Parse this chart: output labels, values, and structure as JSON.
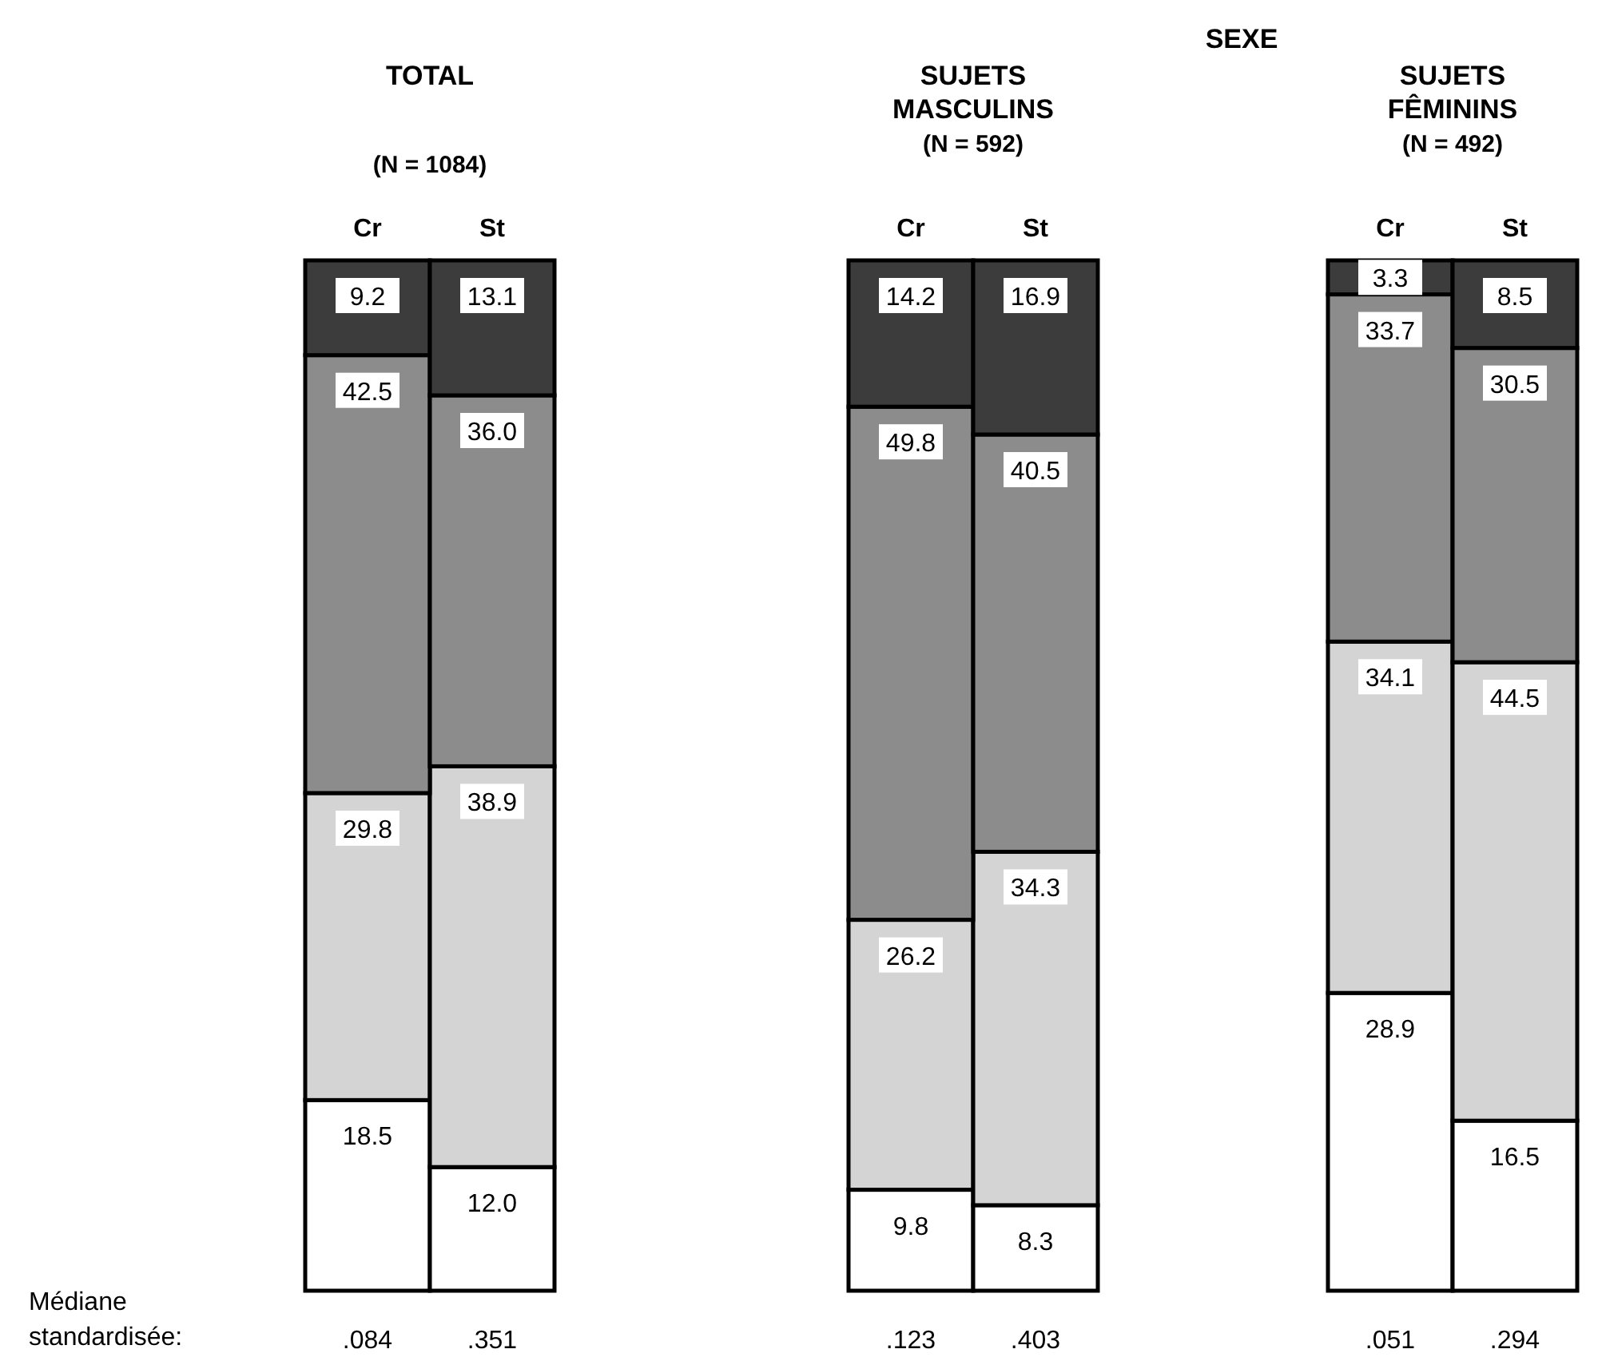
{
  "chart_data": [
    {
      "type": "bar",
      "stacked": true,
      "title": "TOTAL",
      "subtitle": "(N = 1084)",
      "categories": [
        "Cr",
        "St"
      ],
      "ylim": [
        0,
        100
      ],
      "tick_labels": "x",
      "series": [
        {
          "color": "#ffffff",
          "values": [
            18.5,
            12.0
          ],
          "value_labels": [
            "18.5",
            "12.0"
          ]
        },
        {
          "color": "#d4d4d4",
          "values": [
            29.8,
            38.9
          ],
          "value_labels": [
            "29.8",
            "38.9"
          ]
        },
        {
          "color": "#8c8c8c",
          "values": [
            42.5,
            36.0
          ],
          "value_labels": [
            "42.5",
            "36.0"
          ]
        },
        {
          "color": "#3c3c3c",
          "values": [
            9.2,
            13.1
          ],
          "value_labels": [
            "9.2",
            "13.1"
          ]
        }
      ],
      "annotations": [
        "Médiane\nstandardisée:",
        ".084",
        ".351"
      ]
    },
    {
      "type": "bar",
      "stacked": true,
      "title": "SUJETS\nMASCULINS",
      "subtitle": "(N = 592)",
      "categories": [
        "Cr",
        "St"
      ],
      "ylim": [
        0,
        100
      ],
      "tick_labels": "x",
      "series": [
        {
          "color": "#ffffff",
          "values": [
            9.8,
            8.3
          ],
          "value_labels": [
            "9.8",
            "8.3"
          ]
        },
        {
          "color": "#d4d4d4",
          "values": [
            26.2,
            34.3
          ],
          "value_labels": [
            "26.2",
            "34.3"
          ]
        },
        {
          "color": "#8c8c8c",
          "values": [
            49.8,
            40.5
          ],
          "value_labels": [
            "49.8",
            "40.5"
          ]
        },
        {
          "color": "#3c3c3c",
          "values": [
            14.2,
            16.9
          ],
          "value_labels": [
            "14.2",
            "16.9"
          ]
        }
      ],
      "annotations": [
        "SEXE",
        ".123",
        ".403"
      ]
    },
    {
      "type": "bar",
      "stacked": true,
      "title": "SUJETS\nFÊMININS",
      "subtitle": "(N = 492)",
      "categories": [
        "Cr",
        "St"
      ],
      "ylim": [
        0,
        100
      ],
      "tick_labels": "x",
      "series": [
        {
          "color": "#ffffff",
          "values": [
            28.9,
            16.5
          ],
          "value_labels": [
            "28.9",
            "16.5"
          ]
        },
        {
          "color": "#d4d4d4",
          "values": [
            34.1,
            44.5
          ],
          "value_labels": [
            "34.1",
            "44.5"
          ]
        },
        {
          "color": "#8c8c8c",
          "values": [
            33.7,
            30.5
          ],
          "value_labels": [
            "33.7",
            "30.5"
          ]
        },
        {
          "color": "#3c3c3c",
          "values": [
            3.3,
            8.5
          ],
          "value_labels": [
            "3.3",
            "8.5"
          ]
        }
      ],
      "annotations": [
        ".051",
        ".294"
      ]
    }
  ]
}
